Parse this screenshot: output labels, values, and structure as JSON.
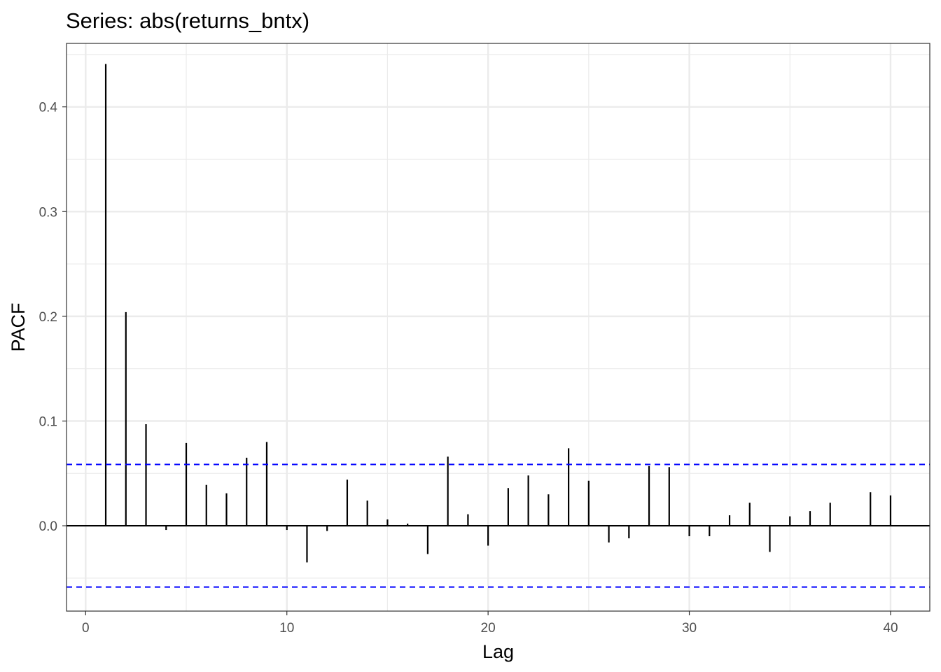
{
  "chart_data": {
    "type": "bar",
    "title": "Series: abs(returns_bntx)",
    "xlabel": "Lag",
    "ylabel": "PACF",
    "xlim": [
      -0.95,
      41.95
    ],
    "ylim": [
      -0.0815,
      0.4606
    ],
    "x_ticks": [
      0,
      10,
      20,
      30,
      40
    ],
    "y_ticks": [
      0.0,
      0.1,
      0.2,
      0.3,
      0.4
    ],
    "x_tick_labels": [
      "0",
      "10",
      "20",
      "30",
      "40"
    ],
    "y_tick_labels": [
      "0.0",
      "0.1",
      "0.2",
      "0.3",
      "0.4"
    ],
    "x_minor_ticks": [
      5,
      15,
      25,
      35
    ],
    "y_minor_ticks": [
      -0.05,
      0.05,
      0.15,
      0.25,
      0.35,
      0.45
    ],
    "grid": true,
    "confidence_limit": 0.0585,
    "lags": [
      1,
      2,
      3,
      4,
      5,
      6,
      7,
      8,
      9,
      10,
      11,
      12,
      13,
      14,
      15,
      16,
      17,
      18,
      19,
      20,
      21,
      22,
      23,
      24,
      25,
      26,
      27,
      28,
      29,
      30,
      31,
      32,
      33,
      34,
      35,
      36,
      37,
      38,
      39,
      40
    ],
    "values": [
      0.441,
      0.204,
      0.097,
      -0.004,
      0.079,
      0.039,
      0.031,
      0.065,
      0.08,
      -0.004,
      -0.035,
      -0.005,
      0.044,
      0.024,
      0.006,
      0.002,
      -0.027,
      0.066,
      0.011,
      -0.019,
      0.036,
      0.048,
      0.03,
      0.074,
      0.043,
      -0.016,
      -0.012,
      0.057,
      0.056,
      -0.01,
      -0.01,
      0.01,
      0.022,
      -0.025,
      0.009,
      0.014,
      0.022,
      0.0,
      0.032,
      0.029
    ],
    "colors": {
      "bars": "#000000",
      "confidence_lines": "#0000ff",
      "grid": "#ebebeb",
      "panel_border": "#333333",
      "tick_label": "#4d4d4d"
    }
  }
}
